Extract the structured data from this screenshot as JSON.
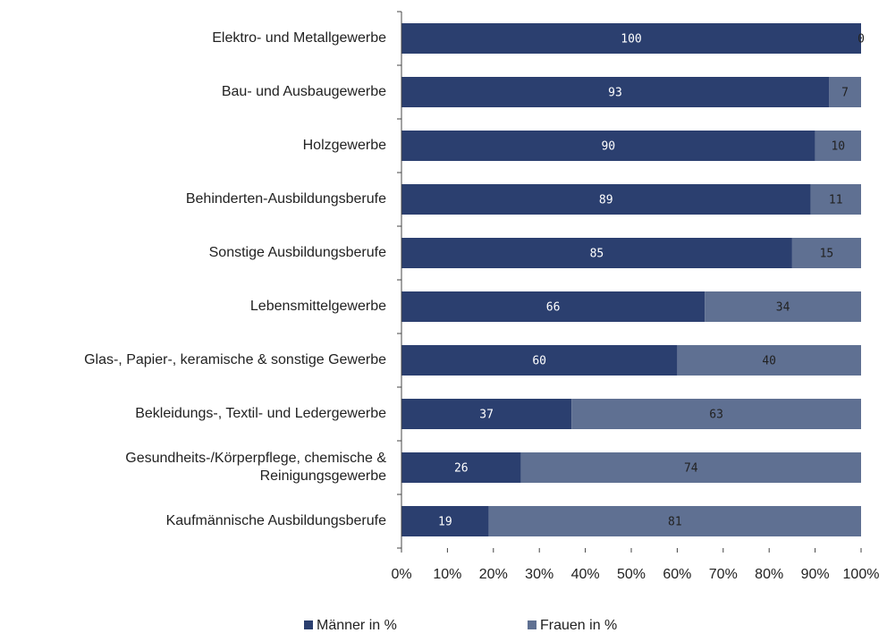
{
  "chart_data": {
    "type": "stacked-bar-horizontal",
    "categories": [
      "Elektro- und Metallgewerbe",
      "Bau- und Ausbaugewerbe",
      "Holzgewerbe",
      "Behinderten-Ausbildungsberufe",
      "Sonstige Ausbildungsberufe",
      "Lebensmittelgewerbe",
      "Glas-, Papier-, keramische & sonstige Gewerbe",
      "Bekleidungs-, Textil- und Ledergewerbe",
      "Gesundheits-/Körperpflege, chemische & Reinigungsgewerbe",
      "Kaufmännische Ausbildungsberufe"
    ],
    "series": [
      {
        "name": "Männer in %",
        "color": "#2b3f6f",
        "values": [
          100,
          93,
          90,
          89,
          85,
          66,
          60,
          37,
          26,
          19
        ]
      },
      {
        "name": "Frauen in %",
        "color": "#5f7092",
        "values": [
          0,
          7,
          10,
          11,
          15,
          34,
          40,
          63,
          74,
          81
        ]
      }
    ],
    "xlim": [
      0,
      100
    ],
    "xticks": [
      {
        "value": 0,
        "label": "0%"
      },
      {
        "value": 10,
        "label": "10%"
      },
      {
        "value": 20,
        "label": "20%"
      },
      {
        "value": 30,
        "label": "30%"
      },
      {
        "value": 40,
        "label": "40%"
      },
      {
        "value": 50,
        "label": "50%"
      },
      {
        "value": 60,
        "label": "60%"
      },
      {
        "value": 70,
        "label": "70%"
      },
      {
        "value": 80,
        "label": "80%"
      },
      {
        "value": 90,
        "label": "90%"
      },
      {
        "value": 100,
        "label": "100%"
      }
    ],
    "legend": "bottom"
  }
}
